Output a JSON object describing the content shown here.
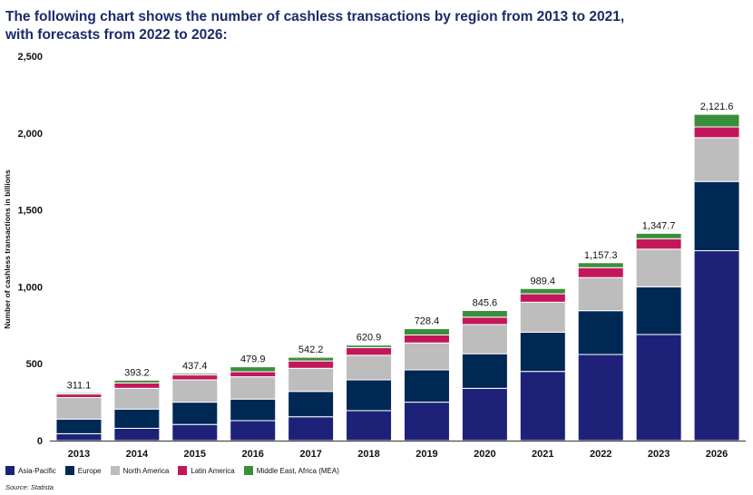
{
  "chart_data": {
    "type": "bar",
    "stacked": true,
    "title_line1": "The following chart shows the number of cashless transactions by region from 2013 to 2021,",
    "title_line2": "with forecasts from 2022 to 2026:",
    "ylabel": "Number of cashless transactions in billions",
    "xlabel": "",
    "ylim": [
      0,
      2500
    ],
    "yticks": [
      0,
      500,
      1000,
      1500,
      2000,
      2500
    ],
    "ytick_labels": [
      "0",
      "500",
      "1,000",
      "1,500",
      "2,000",
      "2,500"
    ],
    "categories": [
      "2013",
      "2014",
      "2015",
      "2016",
      "2017",
      "2018",
      "2019",
      "2020",
      "2021",
      "2022",
      "2023",
      "2026"
    ],
    "totals": [
      311.1,
      393.2,
      437.4,
      479.9,
      542.2,
      620.9,
      728.4,
      845.6,
      989.4,
      1157.3,
      1347.7,
      2121.6
    ],
    "total_labels": [
      "311.1",
      "393.2",
      "437.4",
      "479.9",
      "542.2",
      "620.9",
      "728.4",
      "845.6",
      "989.4",
      "1,157.3",
      "1,347.7",
      "2,121.6"
    ],
    "series": [
      {
        "name": "Asia-Pacific",
        "color": "#1d2278",
        "values": [
          45,
          80,
          105,
          130,
          155,
          195,
          250,
          340,
          450,
          560,
          690,
          1235
        ]
      },
      {
        "name": "Europe",
        "color": "#002855",
        "values": [
          95,
          125,
          145,
          140,
          165,
          200,
          210,
          225,
          255,
          285,
          310,
          450
        ]
      },
      {
        "name": "North America",
        "color": "#bdbdbd",
        "values": [
          140,
          135,
          145,
          145,
          150,
          160,
          175,
          190,
          195,
          215,
          245,
          285
        ]
      },
      {
        "name": "Latin America",
        "color": "#c2185b",
        "values": [
          23,
          35,
          32,
          33,
          48,
          50,
          52,
          48,
          55,
          65,
          68,
          70
        ]
      },
      {
        "name": "Middle East, Africa (MEA)",
        "color": "#3a8f3a",
        "values": [
          8,
          18,
          10,
          32,
          24,
          16,
          41,
          43,
          34,
          32,
          35,
          82
        ]
      }
    ],
    "legend_position": "bottom-left",
    "grid": false
  },
  "source": "Source: Statista"
}
